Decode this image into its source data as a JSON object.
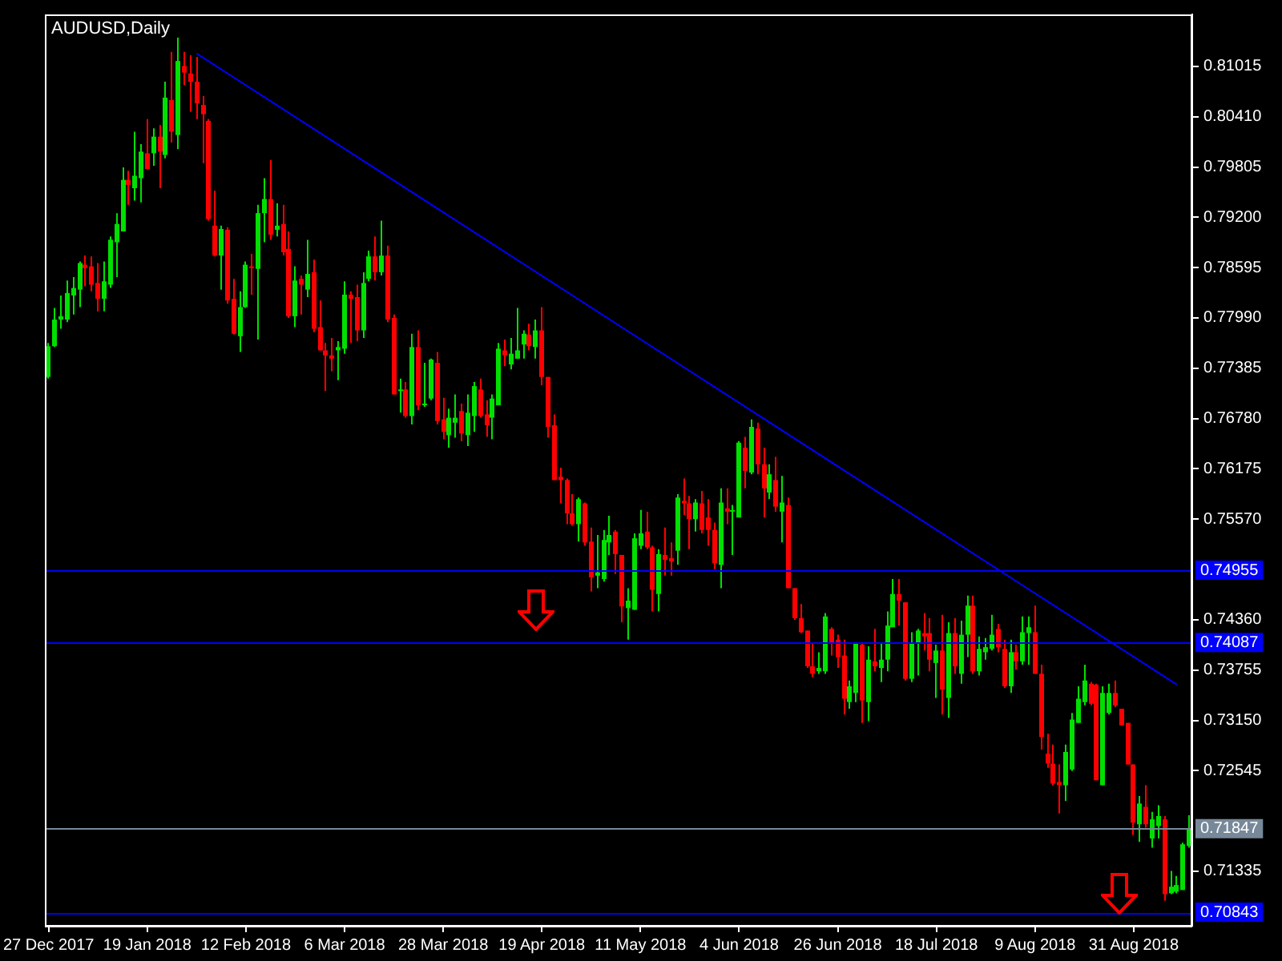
{
  "chart_data": {
    "type": "candlestick",
    "title": "AUDUSD,Daily",
    "categories": [
      "27 Dec 2017",
      null,
      null,
      null,
      null,
      null,
      null,
      null,
      null,
      null,
      null,
      null,
      null,
      null,
      null,
      null,
      "19 Jan 2018",
      null,
      null,
      null,
      null,
      null,
      null,
      null,
      null,
      null,
      null,
      null,
      null,
      null,
      null,
      null,
      "12 Feb 2018",
      null,
      null,
      null,
      null,
      null,
      null,
      null,
      null,
      null,
      null,
      null,
      null,
      null,
      null,
      null,
      "6 Mar 2018",
      null,
      null,
      null,
      null,
      null,
      null,
      null,
      null,
      null,
      null,
      null,
      null,
      null,
      null,
      null,
      "28 Mar 2018",
      null,
      null,
      null,
      null,
      null,
      null,
      null,
      null,
      null,
      null,
      null,
      null,
      null,
      null,
      null,
      "19 Apr 2018",
      null,
      null,
      null,
      null,
      null,
      null,
      null,
      null,
      null,
      null,
      null,
      null,
      null,
      null,
      null,
      "11 May 2018",
      null,
      null,
      null,
      null,
      null,
      null,
      null,
      null,
      null,
      null,
      null,
      null,
      null,
      null,
      null,
      "4 Jun 2018",
      null,
      null,
      null,
      null,
      null,
      null,
      null,
      null,
      null,
      null,
      null,
      null,
      null,
      null,
      null,
      "26 Jun 2018",
      null,
      null,
      null,
      null,
      null,
      null,
      null,
      null,
      null,
      null,
      null,
      null,
      null,
      null,
      null,
      "18 Jul 2018",
      null,
      null,
      null,
      null,
      null,
      null,
      null,
      null,
      null,
      null,
      null,
      null,
      null,
      null,
      null,
      "9 Aug 2018",
      null,
      null,
      null,
      null,
      null,
      null,
      null,
      null,
      null,
      null,
      null,
      null,
      null,
      null,
      null,
      "31 Aug 2018",
      null,
      null,
      null,
      null,
      null,
      null,
      null,
      null,
      null
    ],
    "ohlc": [
      [
        0.7728,
        0.7769,
        0.7726,
        0.7765
      ],
      [
        0.7765,
        0.7811,
        0.7764,
        0.7797
      ],
      [
        0.7797,
        0.7826,
        0.7786,
        0.7801
      ],
      [
        0.7797,
        0.7844,
        0.7794,
        0.7829
      ],
      [
        0.7826,
        0.7848,
        0.7803,
        0.7835
      ],
      [
        0.7833,
        0.7867,
        0.7812,
        0.7865
      ],
      [
        0.7863,
        0.7874,
        0.7837,
        0.7859
      ],
      [
        0.7861,
        0.7873,
        0.7831,
        0.7839
      ],
      [
        0.7841,
        0.7865,
        0.7807,
        0.7822
      ],
      [
        0.7822,
        0.7867,
        0.7807,
        0.7843
      ],
      [
        0.7839,
        0.7897,
        0.7835,
        0.7893
      ],
      [
        0.789,
        0.7925,
        0.7848,
        0.7912
      ],
      [
        0.7903,
        0.798,
        0.7903,
        0.7965
      ],
      [
        0.7965,
        0.7976,
        0.7935,
        0.7959
      ],
      [
        0.7955,
        0.8023,
        0.794,
        0.797
      ],
      [
        0.7967,
        0.8008,
        0.7938,
        0.7999
      ],
      [
        0.7997,
        0.8038,
        0.7978,
        0.7978
      ],
      [
        0.7997,
        0.8027,
        0.7982,
        0.8017
      ],
      [
        0.8017,
        0.8031,
        0.7955,
        0.7999
      ],
      [
        0.7995,
        0.8083,
        0.7991,
        0.8064
      ],
      [
        0.8061,
        0.8119,
        0.801,
        0.8023
      ],
      [
        0.8019,
        0.8136,
        0.8002,
        0.8108
      ],
      [
        0.8102,
        0.8119,
        0.8079,
        0.8094
      ],
      [
        0.8093,
        0.8115,
        0.8047,
        0.8083
      ],
      [
        0.8083,
        0.8113,
        0.8038,
        0.8057
      ],
      [
        0.8055,
        0.8066,
        0.7985,
        0.8044
      ],
      [
        0.8036,
        0.8038,
        0.7916,
        0.7918
      ],
      [
        0.791,
        0.7952,
        0.7873,
        0.7874
      ],
      [
        0.7874,
        0.791,
        0.7833,
        0.7906
      ],
      [
        0.7905,
        0.7908,
        0.7816,
        0.782
      ],
      [
        0.7822,
        0.7846,
        0.7779,
        0.778
      ],
      [
        0.7777,
        0.7831,
        0.7758,
        0.7812
      ],
      [
        0.7812,
        0.7867,
        0.7811,
        0.7863
      ],
      [
        0.7861,
        0.7876,
        0.7827,
        0.7859
      ],
      [
        0.7858,
        0.7935,
        0.7773,
        0.7925
      ],
      [
        0.7925,
        0.7967,
        0.789,
        0.7942
      ],
      [
        0.7942,
        0.7989,
        0.7893,
        0.7899
      ],
      [
        0.7905,
        0.7937,
        0.7897,
        0.791
      ],
      [
        0.7912,
        0.7935,
        0.7874,
        0.7878
      ],
      [
        0.7882,
        0.7903,
        0.7799,
        0.7801
      ],
      [
        0.7801,
        0.7861,
        0.7788,
        0.7844
      ],
      [
        0.7846,
        0.785,
        0.7803,
        0.7839
      ],
      [
        0.7833,
        0.7893,
        0.7824,
        0.7852
      ],
      [
        0.7854,
        0.7869,
        0.7782,
        0.7786
      ],
      [
        0.7788,
        0.782,
        0.776,
        0.776
      ],
      [
        0.776,
        0.7769,
        0.7711,
        0.7754
      ],
      [
        0.7754,
        0.7775,
        0.7735,
        0.775
      ],
      [
        0.776,
        0.7771,
        0.7724,
        0.7764
      ],
      [
        0.7762,
        0.7843,
        0.7756,
        0.7827
      ],
      [
        0.7827,
        0.7831,
        0.7769,
        0.7822
      ],
      [
        0.7824,
        0.7839,
        0.7771,
        0.7784
      ],
      [
        0.7784,
        0.7854,
        0.7775,
        0.7841
      ],
      [
        0.7846,
        0.788,
        0.7843,
        0.7873
      ],
      [
        0.7873,
        0.7897,
        0.7844,
        0.7854
      ],
      [
        0.7854,
        0.7916,
        0.785,
        0.7874
      ],
      [
        0.7874,
        0.7886,
        0.7794,
        0.7797
      ],
      [
        0.7799,
        0.7803,
        0.7707,
        0.7707
      ],
      [
        0.7711,
        0.7726,
        0.7685,
        0.7713
      ],
      [
        0.7713,
        0.7722,
        0.7679,
        0.7681
      ],
      [
        0.7681,
        0.778,
        0.7671,
        0.7764
      ],
      [
        0.7764,
        0.7784,
        0.7688,
        0.7694
      ],
      [
        0.7694,
        0.7745,
        0.7692,
        0.7696
      ],
      [
        0.7702,
        0.775,
        0.77,
        0.7749
      ],
      [
        0.7745,
        0.7758,
        0.7671,
        0.7675
      ],
      [
        0.7677,
        0.7703,
        0.7653,
        0.7662
      ],
      [
        0.7658,
        0.769,
        0.7643,
        0.7679
      ],
      [
        0.7673,
        0.7707,
        0.7655,
        0.7679
      ],
      [
        0.7687,
        0.7696,
        0.7651,
        0.766
      ],
      [
        0.7658,
        0.7707,
        0.7645,
        0.7685
      ],
      [
        0.7681,
        0.7722,
        0.7662,
        0.7717
      ],
      [
        0.7713,
        0.7726,
        0.7679,
        0.7681
      ],
      [
        0.7683,
        0.77,
        0.7656,
        0.767
      ],
      [
        0.7679,
        0.7707,
        0.7653,
        0.7702
      ],
      [
        0.7694,
        0.7769,
        0.7694,
        0.7762
      ],
      [
        0.776,
        0.7773,
        0.7741,
        0.7754
      ],
      [
        0.7743,
        0.7775,
        0.7737,
        0.7756
      ],
      [
        0.775,
        0.7811,
        0.775,
        0.776
      ],
      [
        0.7767,
        0.7784,
        0.775,
        0.778
      ],
      [
        0.7779,
        0.7792,
        0.776,
        0.7765
      ],
      [
        0.7764,
        0.7797,
        0.775,
        0.7784
      ],
      [
        0.7784,
        0.7812,
        0.7718,
        0.7728
      ],
      [
        0.7728,
        0.7728,
        0.7655,
        0.7668
      ],
      [
        0.767,
        0.7683,
        0.7604,
        0.7604
      ],
      [
        0.7608,
        0.7619,
        0.7576,
        0.7604
      ],
      [
        0.7604,
        0.7606,
        0.7551,
        0.7564
      ],
      [
        0.7564,
        0.7587,
        0.7549,
        0.7551
      ],
      [
        0.7551,
        0.7583,
        0.753,
        0.7581
      ],
      [
        0.7576,
        0.7577,
        0.7525,
        0.7529
      ],
      [
        0.753,
        0.7547,
        0.747,
        0.7487
      ],
      [
        0.7489,
        0.7538,
        0.7474,
        0.7493
      ],
      [
        0.7485,
        0.7544,
        0.7482,
        0.7532
      ],
      [
        0.7529,
        0.7561,
        0.7514,
        0.7538
      ],
      [
        0.7542,
        0.7544,
        0.7491,
        0.7515
      ],
      [
        0.7514,
        0.7514,
        0.7433,
        0.7452
      ],
      [
        0.745,
        0.7474,
        0.7412,
        0.7459
      ],
      [
        0.7448,
        0.754,
        0.7448,
        0.7534
      ],
      [
        0.7525,
        0.7568,
        0.7521,
        0.754
      ],
      [
        0.7542,
        0.7566,
        0.7521,
        0.7523
      ],
      [
        0.7523,
        0.7525,
        0.7446,
        0.7472
      ],
      [
        0.7467,
        0.7521,
        0.7446,
        0.7515
      ],
      [
        0.7514,
        0.7547,
        0.7489,
        0.7508
      ],
      [
        0.751,
        0.7529,
        0.7489,
        0.7506
      ],
      [
        0.7519,
        0.7587,
        0.7502,
        0.7583
      ],
      [
        0.7579,
        0.7606,
        0.7562,
        0.7576
      ],
      [
        0.7576,
        0.7585,
        0.7521,
        0.7557
      ],
      [
        0.7557,
        0.7581,
        0.7542,
        0.7577
      ],
      [
        0.7576,
        0.7591,
        0.754,
        0.7544
      ],
      [
        0.7559,
        0.7581,
        0.7525,
        0.7544
      ],
      [
        0.7544,
        0.7553,
        0.7497,
        0.7504
      ],
      [
        0.7502,
        0.7594,
        0.7474,
        0.7577
      ],
      [
        0.757,
        0.7594,
        0.7551,
        0.7566
      ],
      [
        0.7566,
        0.7574,
        0.7514,
        0.7568
      ],
      [
        0.7559,
        0.7651,
        0.7559,
        0.7649
      ],
      [
        0.7643,
        0.7656,
        0.7594,
        0.7615
      ],
      [
        0.7613,
        0.7677,
        0.7611,
        0.7668
      ],
      [
        0.7666,
        0.7673,
        0.7611,
        0.7623
      ],
      [
        0.7623,
        0.7643,
        0.7559,
        0.7594
      ],
      [
        0.7589,
        0.7623,
        0.7581,
        0.7611
      ],
      [
        0.7604,
        0.7632,
        0.7566,
        0.7572
      ],
      [
        0.7566,
        0.7609,
        0.7529,
        0.7577
      ],
      [
        0.7574,
        0.7583,
        0.7474,
        0.7474
      ],
      [
        0.7474,
        0.7474,
        0.7436,
        0.7438
      ],
      [
        0.7438,
        0.7455,
        0.742,
        0.7421
      ],
      [
        0.7423,
        0.7423,
        0.7378,
        0.738
      ],
      [
        0.738,
        0.7408,
        0.7367,
        0.7371
      ],
      [
        0.7374,
        0.7397,
        0.7371,
        0.7378
      ],
      [
        0.7374,
        0.7444,
        0.7371,
        0.744
      ],
      [
        0.7425,
        0.7427,
        0.7393,
        0.7408
      ],
      [
        0.7412,
        0.7418,
        0.7378,
        0.7391
      ],
      [
        0.7393,
        0.7412,
        0.7322,
        0.7341
      ],
      [
        0.7337,
        0.7363,
        0.7329,
        0.7356
      ],
      [
        0.7348,
        0.7408,
        0.7337,
        0.7408
      ],
      [
        0.7406,
        0.7408,
        0.7312,
        0.7339
      ],
      [
        0.7337,
        0.7404,
        0.7314,
        0.7388
      ],
      [
        0.7386,
        0.7425,
        0.7374,
        0.738
      ],
      [
        0.7378,
        0.7408,
        0.7361,
        0.7388
      ],
      [
        0.7388,
        0.7446,
        0.7374,
        0.7429
      ],
      [
        0.7427,
        0.7485,
        0.7427,
        0.7467
      ],
      [
        0.7467,
        0.7485,
        0.7429,
        0.7459
      ],
      [
        0.7457,
        0.7457,
        0.7363,
        0.7365
      ],
      [
        0.7365,
        0.7421,
        0.7361,
        0.7408
      ],
      [
        0.7408,
        0.7425,
        0.7369,
        0.7423
      ],
      [
        0.742,
        0.7444,
        0.7399,
        0.7416
      ],
      [
        0.742,
        0.7438,
        0.7374,
        0.7388
      ],
      [
        0.7384,
        0.7406,
        0.7342,
        0.7399
      ],
      [
        0.7399,
        0.7442,
        0.7322,
        0.7352
      ],
      [
        0.7342,
        0.7433,
        0.7318,
        0.742
      ],
      [
        0.742,
        0.7438,
        0.7371,
        0.738
      ],
      [
        0.7371,
        0.7435,
        0.7359,
        0.7418
      ],
      [
        0.7418,
        0.7465,
        0.7391,
        0.7453
      ],
      [
        0.7453,
        0.7465,
        0.7371,
        0.7374
      ],
      [
        0.7374,
        0.7416,
        0.7369,
        0.7401
      ],
      [
        0.7397,
        0.7414,
        0.7388,
        0.7403
      ],
      [
        0.7401,
        0.7442,
        0.7399,
        0.7418
      ],
      [
        0.7425,
        0.7431,
        0.7397,
        0.7403
      ],
      [
        0.7401,
        0.7412,
        0.7354,
        0.7356
      ],
      [
        0.7356,
        0.7412,
        0.7348,
        0.7397
      ],
      [
        0.7397,
        0.7406,
        0.7376,
        0.7386
      ],
      [
        0.7386,
        0.744,
        0.7382,
        0.7421
      ],
      [
        0.742,
        0.744,
        0.7382,
        0.7427
      ],
      [
        0.7421,
        0.7453,
        0.7371,
        0.7371
      ],
      [
        0.7371,
        0.7382,
        0.728,
        0.7295
      ],
      [
        0.7275,
        0.7299,
        0.7258,
        0.7263
      ],
      [
        0.7263,
        0.7286,
        0.7237,
        0.7239
      ],
      [
        0.7241,
        0.7262,
        0.7203,
        0.7237
      ],
      [
        0.7237,
        0.7286,
        0.7218,
        0.7277
      ],
      [
        0.7256,
        0.7324,
        0.7254,
        0.7316
      ],
      [
        0.7312,
        0.7356,
        0.7312,
        0.7341
      ],
      [
        0.7337,
        0.7382,
        0.7333,
        0.7363
      ],
      [
        0.7359,
        0.7361,
        0.7333,
        0.7335
      ],
      [
        0.7358,
        0.7359,
        0.7243,
        0.7243
      ],
      [
        0.7237,
        0.7356,
        0.7237,
        0.7348
      ],
      [
        0.7324,
        0.7359,
        0.7322,
        0.7348
      ],
      [
        0.7348,
        0.7363,
        0.7331,
        0.7333
      ],
      [
        0.7329,
        0.7329,
        0.7309,
        0.7309
      ],
      [
        0.7312,
        0.7312,
        0.7262,
        0.7262
      ],
      [
        0.7262,
        0.7262,
        0.7177,
        0.7192
      ],
      [
        0.719,
        0.7224,
        0.7169,
        0.7215
      ],
      [
        0.7211,
        0.7237,
        0.7186,
        0.719
      ],
      [
        0.7173,
        0.7205,
        0.7162,
        0.7196
      ],
      [
        0.7188,
        0.7213,
        0.7173,
        0.72
      ],
      [
        0.7196,
        0.72,
        0.7098,
        0.7106
      ],
      [
        0.7107,
        0.7134,
        0.7106,
        0.7115
      ],
      [
        0.7109,
        0.7128,
        0.7107,
        0.7117
      ],
      [
        0.7111,
        0.7168,
        0.7111,
        0.7166
      ],
      [
        0.7164,
        0.7201,
        0.7162,
        0.7185
      ]
    ],
    "colors": [
      "#00e000",
      "#00e000",
      "#00e000",
      "#00e000",
      "#00e000",
      "#00e000",
      "#ff0000",
      "#ff0000",
      "#ff0000",
      "#00e000",
      "#00e000",
      "#00e000",
      "#00e000",
      "#ff0000",
      "#00e000",
      "#00e000",
      "#ff0000",
      "#00e000",
      "#ff0000",
      "#00e000",
      "#ff0000",
      "#00e000",
      "#ff0000",
      "#ff0000",
      "#ff0000",
      "#ff0000",
      "#ff0000",
      "#ff0000",
      "#00e000",
      "#ff0000",
      "#ff0000",
      "#00e000",
      "#00e000",
      "#ff0000",
      "#00e000",
      "#00e000",
      "#ff0000",
      "#00e000",
      "#ff0000",
      "#ff0000",
      "#00e000",
      "#ff0000",
      "#00e000",
      "#ff0000",
      "#ff0000",
      "#ff0000",
      "#ff0000",
      "#00e000",
      "#00e000",
      "#ff0000",
      "#ff0000",
      "#00e000",
      "#00e000",
      "#ff0000",
      "#00e000",
      "#ff0000",
      "#ff0000",
      "#00e000",
      "#ff0000",
      "#00e000",
      "#ff0000",
      "#00e000",
      "#00e000",
      "#ff0000",
      "#ff0000",
      "#00e000",
      "#00e000",
      "#ff0000",
      "#00e000",
      "#00e000",
      "#ff0000",
      "#ff0000",
      "#00e000",
      "#00e000",
      "#ff0000",
      "#00e000",
      "#00e000",
      "#00e000",
      "#ff0000",
      "#00e000",
      "#ff0000",
      "#ff0000",
      "#ff0000",
      "#ff0000",
      "#ff0000",
      "#ff0000",
      "#00e000",
      "#ff0000",
      "#ff0000",
      "#00e000",
      "#00e000",
      "#00e000",
      "#ff0000",
      "#ff0000",
      "#00e000",
      "#00e000",
      "#00e000",
      "#ff0000",
      "#ff0000",
      "#00e000",
      "#ff0000",
      "#ff0000",
      "#00e000",
      "#ff0000",
      "#ff0000",
      "#00e000",
      "#ff0000",
      "#ff0000",
      "#ff0000",
      "#00e000",
      "#ff0000",
      "#00e000",
      "#00e000",
      "#ff0000",
      "#00e000",
      "#ff0000",
      "#ff0000",
      "#00e000",
      "#ff0000",
      "#00e000",
      "#ff0000",
      "#ff0000",
      "#ff0000",
      "#ff0000",
      "#ff0000",
      "#00e000",
      "#00e000",
      "#ff0000",
      "#ff0000",
      "#ff0000",
      "#00e000",
      "#00e000",
      "#ff0000",
      "#00e000",
      "#ff0000",
      "#00e000",
      "#00e000",
      "#00e000",
      "#ff0000",
      "#ff0000",
      "#00e000",
      "#00e000",
      "#ff0000",
      "#ff0000",
      "#00e000",
      "#ff0000",
      "#00e000",
      "#ff0000",
      "#00e000",
      "#00e000",
      "#ff0000",
      "#00e000",
      "#00e000",
      "#00e000",
      "#ff0000",
      "#ff0000",
      "#00e000",
      "#ff0000",
      "#00e000",
      "#00e000",
      "#ff0000",
      "#ff0000",
      "#ff0000",
      "#ff0000",
      "#ff0000",
      "#00e000",
      "#00e000",
      "#00e000",
      "#00e000",
      "#ff0000",
      "#ff0000",
      "#00e000",
      "#00e000",
      "#ff0000",
      "#ff0000",
      "#ff0000",
      "#ff0000",
      "#00e000",
      "#ff0000",
      "#00e000",
      "#00e000",
      "#ff0000",
      "#00e000",
      "#00e000",
      "#00e000",
      "#00e000"
    ],
    "series": [
      {
        "type": "line",
        "color": "#0000ff",
        "values": [
          null,
          null,
          null,
          null,
          null,
          null,
          null,
          null,
          null,
          null,
          null,
          null,
          null,
          null,
          null,
          null,
          null,
          null,
          null,
          null,
          null,
          null,
          null,
          null,
          0.8117,
          null,
          null,
          null,
          null,
          null,
          null,
          null,
          null,
          null,
          null,
          null,
          null,
          null,
          null,
          null,
          null,
          null,
          null,
          null,
          null,
          null,
          null,
          null,
          null,
          null,
          null,
          null,
          null,
          null,
          null,
          null,
          null,
          null,
          null,
          null,
          null,
          null,
          null,
          null,
          null,
          null,
          null,
          null,
          null,
          null,
          null,
          null,
          null,
          null,
          null,
          null,
          null,
          null,
          null,
          null,
          null,
          null,
          null,
          null,
          null,
          null,
          null,
          null,
          null,
          null,
          null,
          null,
          null,
          null,
          null,
          null,
          null,
          null,
          null,
          null,
          null,
          null,
          null,
          null,
          null,
          null,
          null,
          null,
          null,
          null,
          null,
          null,
          null,
          null,
          null,
          null,
          null,
          null,
          null,
          null,
          null,
          null,
          null,
          null,
          null,
          null,
          null,
          null,
          null,
          null,
          null,
          null,
          null,
          null,
          null,
          null,
          null,
          null,
          null,
          null,
          null,
          null,
          null,
          null,
          null,
          null,
          null,
          null,
          null,
          null,
          null,
          null,
          null,
          null,
          null,
          null,
          null,
          null,
          null,
          null,
          null,
          null,
          null,
          null,
          null,
          null,
          null,
          null,
          null,
          null,
          null,
          null,
          null,
          null,
          null,
          null,
          null,
          null,
          null,
          null,
          null,
          null,
          null,
          0.7358,
          null,
          null
        ]
      }
    ],
    "ylim": [
      0.7068,
      0.8164
    ],
    "yticks": [
      {
        "value": 0.81015,
        "label": "0.81015"
      },
      {
        "value": 0.8041,
        "label": "0.80410"
      },
      {
        "value": 0.79805,
        "label": "0.79805"
      },
      {
        "value": 0.792,
        "label": "0.79200"
      },
      {
        "value": 0.78595,
        "label": "0.78595"
      },
      {
        "value": 0.7799,
        "label": "0.77990"
      },
      {
        "value": 0.77385,
        "label": "0.77385"
      },
      {
        "value": 0.7678,
        "label": "0.76780"
      },
      {
        "value": 0.76175,
        "label": "0.76175"
      },
      {
        "value": 0.7557,
        "label": "0.75570"
      },
      {
        "value": 0.7436,
        "label": "0.74360"
      },
      {
        "value": 0.73755,
        "label": "0.73755"
      },
      {
        "value": 0.7315,
        "label": "0.73150"
      },
      {
        "value": 0.72545,
        "label": "0.72545"
      },
      {
        "value": 0.71335,
        "label": "0.71335"
      }
    ],
    "ref_lines": [
      {
        "axis": "y",
        "value": 0.74955,
        "label": "0.74955",
        "color": "#0000ff"
      },
      {
        "axis": "y",
        "value": 0.74087,
        "label": "0.74087",
        "color": "#0000ff"
      },
      {
        "axis": "y",
        "value": 0.71847,
        "label": "0.71847",
        "color": "#778899"
      },
      {
        "axis": "y",
        "value": 0.70843,
        "label": "0.70843",
        "color": "#0000ff"
      }
    ]
  }
}
